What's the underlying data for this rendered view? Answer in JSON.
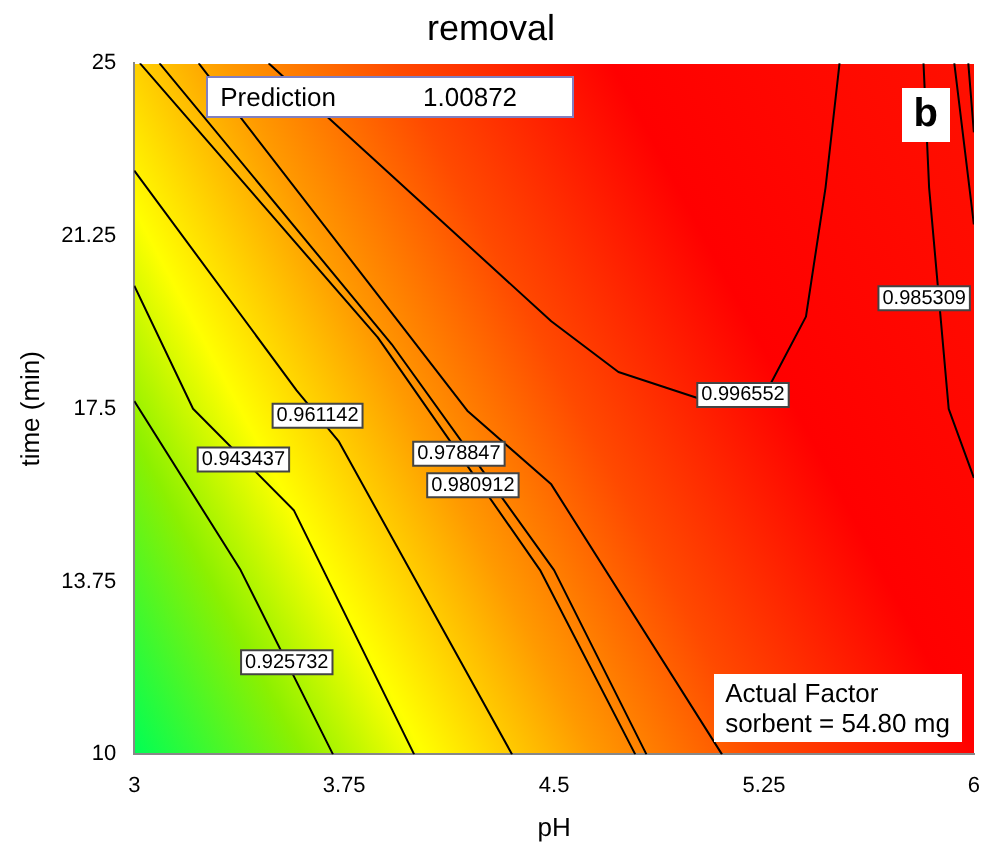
{
  "chart_data": {
    "type": "line",
    "title": "removal",
    "xlabel": "pH",
    "ylabel": "time (min)",
    "xlim": [
      3,
      6
    ],
    "xticks": [
      3,
      3.75,
      4.5,
      5.25,
      6
    ],
    "ylim": [
      10,
      25
    ],
    "yticks": [
      10,
      13.75,
      17.5,
      21.25,
      25
    ],
    "grid": false,
    "legend": false,
    "marker": "none",
    "line_style": "solid",
    "annotations": [
      "Prediction 1.00872",
      "b",
      "Actual Factor\nsorbent = 54.80 mg"
    ],
    "series": [
      {
        "name": "0.925732",
        "color": "#000000",
        "x": [
          3,
          3.38,
          3.71
        ],
        "values": [
          17.67,
          14.0,
          10
        ]
      },
      {
        "name": "0.943437",
        "color": "#000000",
        "x": [
          3,
          3.21,
          3.57,
          4.0
        ],
        "values": [
          20.17,
          17.5,
          15.3,
          10
        ]
      },
      {
        "name": "0.961142",
        "color": "#000000",
        "x": [
          3,
          3.58,
          3.73,
          4.35
        ],
        "values": [
          22.67,
          17.9,
          16.8,
          10
        ]
      },
      {
        "name": "0.978847",
        "color": "#000000",
        "x": [
          3.02,
          3.87,
          4.45,
          4.79,
          null,
          5.98,
          6
        ],
        "values": [
          25,
          19.05,
          14.0,
          10,
          null,
          25,
          23.5
        ]
      },
      {
        "name": "0.980912",
        "color": "#000000",
        "x": [
          3.09,
          3.92,
          4.5,
          4.83,
          null,
          5.93,
          6
        ],
        "values": [
          25,
          18.9,
          14.0,
          10,
          null,
          25,
          21.5
        ]
      },
      {
        "name": "0.985309",
        "color": "#000000",
        "x": [
          3.23,
          4.19,
          4.49,
          5.1,
          null,
          5.82,
          5.84,
          5.91,
          6
        ],
        "values": [
          25,
          17.46,
          15.86,
          10,
          null,
          25,
          22.3,
          17.5,
          16.0
        ]
      },
      {
        "name": "0.996552",
        "color": "#000000",
        "x": [
          3.48,
          4.49,
          4.73,
          5.08,
          5.27,
          5.4,
          5.47,
          5.52
        ],
        "values": [
          25,
          19.4,
          18.3,
          17.6,
          18.0,
          19.5,
          22.3,
          25
        ]
      }
    ]
  }
}
